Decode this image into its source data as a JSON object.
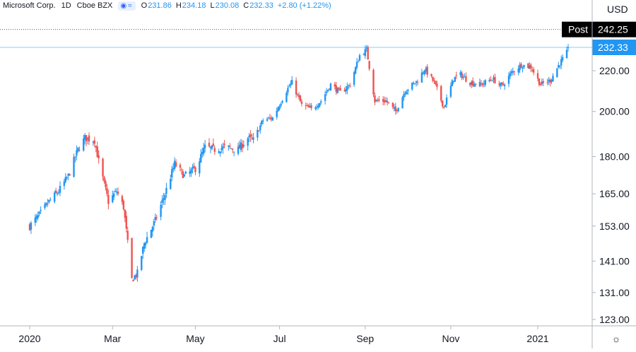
{
  "header": {
    "symbol": "Microsoft Corp.",
    "interval": "1D",
    "exchange": "Cboe BZX",
    "open_key": "O",
    "open": "231.86",
    "high_key": "H",
    "high": "234.18",
    "low_key": "L",
    "low": "230.08",
    "close_key": "C",
    "close": "232.33",
    "change": "+2.80 (+1.22%)"
  },
  "currency": "USD",
  "post_label": "Post",
  "post_price": "242.25",
  "last_price": "232.33",
  "colors": {
    "up": "#2196f3",
    "down": "#ef5350",
    "post_line": "#555555",
    "last_line": "#2196f3",
    "axis": "#131722"
  },
  "settings_icon": "gear-icon",
  "chart_data": {
    "type": "candlestick",
    "symbol": "Microsoft Corp.",
    "interval": "1D",
    "y_scale": "log",
    "ylim": [
      119,
      251
    ],
    "y_ticks": [
      "220.00",
      "200.00",
      "180.00",
      "165.00",
      "153.00",
      "141.00",
      "131.00",
      "123.00"
    ],
    "x_ticks": [
      "2020",
      "Mar",
      "May",
      "Jul",
      "Sep",
      "Nov",
      "2021"
    ],
    "x_tick_dates": [
      "2020-01-02",
      "2020-03-02",
      "2020-05-01",
      "2020-07-01",
      "2020-09-01",
      "2020-11-02",
      "2021-01-04"
    ],
    "post_market_price": 242.25,
    "last_price": 232.33,
    "closes": [
      {
        "d": "2020-01-02",
        "c": 153.0
      },
      {
        "d": "2020-01-09",
        "c": 157.0
      },
      {
        "d": "2020-01-16",
        "c": 162.0
      },
      {
        "d": "2020-01-23",
        "c": 166.0
      },
      {
        "d": "2020-01-30",
        "c": 172.0
      },
      {
        "d": "2020-02-06",
        "c": 183.0
      },
      {
        "d": "2020-02-11",
        "c": 188.0
      },
      {
        "d": "2020-02-18",
        "c": 187.0
      },
      {
        "d": "2020-02-21",
        "c": 178.0
      },
      {
        "d": "2020-02-28",
        "c": 162.0
      },
      {
        "d": "2020-03-05",
        "c": 166.0
      },
      {
        "d": "2020-03-10",
        "c": 160.0
      },
      {
        "d": "2020-03-16",
        "c": 135.0
      },
      {
        "d": "2020-03-20",
        "c": 137.0
      },
      {
        "d": "2020-03-25",
        "c": 147.0
      },
      {
        "d": "2020-04-02",
        "c": 155.0
      },
      {
        "d": "2020-04-09",
        "c": 165.0
      },
      {
        "d": "2020-04-16",
        "c": 177.0
      },
      {
        "d": "2020-04-23",
        "c": 172.0
      },
      {
        "d": "2020-05-01",
        "c": 175.0
      },
      {
        "d": "2020-05-08",
        "c": 184.0
      },
      {
        "d": "2020-05-15",
        "c": 183.0
      },
      {
        "d": "2020-05-22",
        "c": 184.0
      },
      {
        "d": "2020-06-01",
        "c": 183.0
      },
      {
        "d": "2020-06-08",
        "c": 188.0
      },
      {
        "d": "2020-06-12",
        "c": 187.0
      },
      {
        "d": "2020-06-19",
        "c": 196.0
      },
      {
        "d": "2020-06-26",
        "c": 197.0
      },
      {
        "d": "2020-07-06",
        "c": 210.0
      },
      {
        "d": "2020-07-10",
        "c": 214.0
      },
      {
        "d": "2020-07-17",
        "c": 203.0
      },
      {
        "d": "2020-07-24",
        "c": 201.0
      },
      {
        "d": "2020-07-31",
        "c": 205.0
      },
      {
        "d": "2020-08-07",
        "c": 213.0
      },
      {
        "d": "2020-08-14",
        "c": 209.0
      },
      {
        "d": "2020-08-21",
        "c": 213.0
      },
      {
        "d": "2020-08-28",
        "c": 228.0
      },
      {
        "d": "2020-09-02",
        "c": 231.0
      },
      {
        "d": "2020-09-08",
        "c": 205.0
      },
      {
        "d": "2020-09-16",
        "c": 205.0
      },
      {
        "d": "2020-09-23",
        "c": 200.0
      },
      {
        "d": "2020-09-30",
        "c": 210.0
      },
      {
        "d": "2020-10-09",
        "c": 215.0
      },
      {
        "d": "2020-10-14",
        "c": 221.0
      },
      {
        "d": "2020-10-21",
        "c": 214.0
      },
      {
        "d": "2020-10-28",
        "c": 202.0
      },
      {
        "d": "2020-11-04",
        "c": 216.0
      },
      {
        "d": "2020-11-09",
        "c": 218.0
      },
      {
        "d": "2020-11-16",
        "c": 214.0
      },
      {
        "d": "2020-11-24",
        "c": 213.0
      },
      {
        "d": "2020-12-02",
        "c": 216.0
      },
      {
        "d": "2020-12-09",
        "c": 212.0
      },
      {
        "d": "2020-12-16",
        "c": 219.0
      },
      {
        "d": "2020-12-23",
        "c": 223.0
      },
      {
        "d": "2020-12-30",
        "c": 222.0
      },
      {
        "d": "2021-01-06",
        "c": 213.0
      },
      {
        "d": "2021-01-13",
        "c": 215.0
      },
      {
        "d": "2021-01-20",
        "c": 224.0
      },
      {
        "d": "2021-01-22",
        "c": 226.0
      },
      {
        "d": "2021-01-25",
        "c": 229.5
      },
      {
        "d": "2021-01-26",
        "c": 232.33
      }
    ]
  }
}
